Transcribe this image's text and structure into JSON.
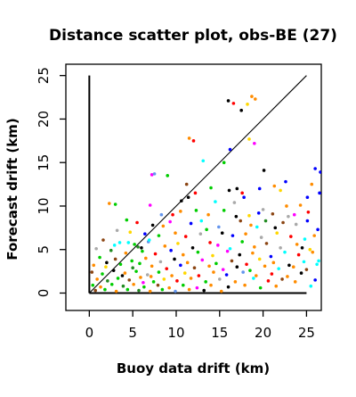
{
  "chart_data": {
    "type": "scatter",
    "title": "Distance scatter plot, obs-BE (27)",
    "xlabel": "Buoy data drift (km)",
    "ylabel": "Forecast drift (km)",
    "xlim": [
      -2.7,
      26.7
    ],
    "ylim": [
      -2,
      26.3
    ],
    "xticks": [
      0,
      5,
      10,
      15,
      20,
      25
    ],
    "yticks": [
      0,
      5,
      10,
      15,
      20,
      25
    ],
    "grid": false,
    "reference_lines": [
      {
        "kind": "identity",
        "from": [
          0,
          0
        ],
        "to": [
          25,
          25
        ]
      },
      {
        "kind": "x-axis",
        "from": [
          0,
          0
        ],
        "to": [
          25,
          0
        ]
      },
      {
        "kind": "y-axis",
        "from": [
          0,
          0
        ],
        "to": [
          0,
          25
        ]
      }
    ],
    "colors": [
      "#000000",
      "#ff0000",
      "#00cd00",
      "#0000ff",
      "#00ffff",
      "#ff00ff",
      "#ffd700",
      "#a9a9a9",
      "#ff8c00",
      "#8b4513",
      "#6495ed",
      "#228b22"
    ],
    "points": [
      [
        16.0,
        22.1,
        0
      ],
      [
        16.6,
        21.8,
        1
      ],
      [
        17.5,
        21.0,
        0
      ],
      [
        18.7,
        22.6,
        8
      ],
      [
        19.1,
        22.3,
        8
      ],
      [
        18.2,
        21.7,
        6
      ],
      [
        11.5,
        17.8,
        8
      ],
      [
        12.0,
        17.5,
        1
      ],
      [
        16.2,
        16.5,
        3
      ],
      [
        18.4,
        17.7,
        6
      ],
      [
        19.0,
        17.2,
        5
      ],
      [
        13.1,
        15.2,
        4
      ],
      [
        15.5,
        15.0,
        2
      ],
      [
        20.1,
        14.1,
        0
      ],
      [
        26.0,
        14.3,
        3
      ],
      [
        26.6,
        13.9,
        3
      ],
      [
        7.2,
        13.6,
        5
      ],
      [
        7.5,
        13.7,
        10
      ],
      [
        9.0,
        13.5,
        2
      ],
      [
        11.2,
        12.5,
        9
      ],
      [
        14.0,
        12.1,
        2
      ],
      [
        16.1,
        11.8,
        0
      ],
      [
        17.0,
        12.0,
        0
      ],
      [
        17.6,
        11.5,
        1
      ],
      [
        19.6,
        12.0,
        3
      ],
      [
        21.3,
        12.3,
        8
      ],
      [
        22.0,
        11.8,
        6
      ],
      [
        22.6,
        12.8,
        3
      ],
      [
        25.6,
        12.5,
        8
      ],
      [
        26.5,
        11.5,
        3
      ],
      [
        25.1,
        11.0,
        3
      ],
      [
        2.3,
        10.3,
        8
      ],
      [
        3.0,
        10.2,
        2
      ],
      [
        7.0,
        10.1,
        5
      ],
      [
        10.6,
        10.6,
        0
      ],
      [
        11.4,
        11.0,
        0
      ],
      [
        12.2,
        11.5,
        1
      ],
      [
        14.5,
        10.5,
        4
      ],
      [
        16.7,
        10.4,
        7
      ],
      [
        17.8,
        11.0,
        3
      ],
      [
        20.0,
        9.6,
        7
      ],
      [
        22.7,
        10.0,
        8
      ],
      [
        24.3,
        10.1,
        8
      ],
      [
        9.6,
        9.0,
        1
      ],
      [
        10.5,
        9.4,
        8
      ],
      [
        12.3,
        9.5,
        2
      ],
      [
        13.7,
        9.0,
        8
      ],
      [
        15.5,
        9.5,
        2
      ],
      [
        16.9,
        8.8,
        0
      ],
      [
        18.4,
        8.9,
        6
      ],
      [
        19.5,
        9.2,
        3
      ],
      [
        21.1,
        9.1,
        9
      ],
      [
        22.9,
        8.8,
        7
      ],
      [
        23.6,
        9.0,
        5
      ],
      [
        25.2,
        9.3,
        1
      ],
      [
        4.3,
        8.4,
        2
      ],
      [
        5.5,
        8.1,
        1
      ],
      [
        7.3,
        7.8,
        0
      ],
      [
        8.5,
        7.7,
        8
      ],
      [
        9.3,
        8.2,
        5
      ],
      [
        11.7,
        8.0,
        3
      ],
      [
        12.9,
        8.3,
        4
      ],
      [
        14.9,
        7.6,
        10
      ],
      [
        17.4,
        8.3,
        9
      ],
      [
        18.6,
        7.8,
        8
      ],
      [
        19.3,
        7.6,
        4
      ],
      [
        20.3,
        8.3,
        11
      ],
      [
        21.4,
        7.5,
        0
      ],
      [
        22.3,
        8.1,
        9
      ],
      [
        23.8,
        7.9,
        7
      ],
      [
        25.1,
        8.3,
        3
      ],
      [
        26.3,
        7.3,
        3
      ],
      [
        3.2,
        7.2,
        7
      ],
      [
        4.7,
        7.0,
        6
      ],
      [
        6.4,
        6.8,
        3
      ],
      [
        8.0,
        6.6,
        2
      ],
      [
        9.9,
        6.9,
        8
      ],
      [
        11.1,
        6.5,
        1
      ],
      [
        12.8,
        6.8,
        7
      ],
      [
        13.5,
        7.3,
        2
      ],
      [
        15.3,
        6.9,
        0
      ],
      [
        16.5,
        6.6,
        3
      ],
      [
        18.0,
        6.8,
        8
      ],
      [
        19.8,
        6.4,
        7
      ],
      [
        21.6,
        6.9,
        6
      ],
      [
        23.2,
        6.5,
        1
      ],
      [
        24.8,
        6.2,
        4
      ],
      [
        25.9,
        6.6,
        8
      ],
      [
        1.6,
        6.1,
        9
      ],
      [
        3.5,
        5.8,
        4
      ],
      [
        5.2,
        5.6,
        2
      ],
      [
        6.8,
        5.9,
        10
      ],
      [
        8.7,
        5.4,
        8
      ],
      [
        10.2,
        5.7,
        6
      ],
      [
        11.9,
        5.2,
        0
      ],
      [
        13.9,
        5.8,
        1
      ],
      [
        14.8,
        5.5,
        5
      ],
      [
        16.2,
        5.1,
        4
      ],
      [
        17.6,
        5.9,
        2
      ],
      [
        19.0,
        5.3,
        8
      ],
      [
        20.4,
        5.7,
        9
      ],
      [
        22.0,
        5.2,
        7
      ],
      [
        23.9,
        5.6,
        8
      ],
      [
        25.4,
        5.0,
        6
      ],
      [
        0.8,
        5.1,
        7
      ],
      [
        2.5,
        4.9,
        11
      ],
      [
        4.2,
        4.6,
        8
      ],
      [
        6.1,
        4.8,
        2
      ],
      [
        7.6,
        4.5,
        1
      ],
      [
        9.4,
        4.9,
        3
      ],
      [
        10.8,
        4.4,
        8
      ],
      [
        12.5,
        4.7,
        2
      ],
      [
        14.2,
        4.3,
        6
      ],
      [
        15.9,
        4.8,
        5
      ],
      [
        17.3,
        4.4,
        0
      ],
      [
        18.8,
        4.6,
        8
      ],
      [
        20.9,
        4.2,
        3
      ],
      [
        22.5,
        4.7,
        4
      ],
      [
        24.1,
        4.4,
        1
      ],
      [
        25.7,
        4.7,
        8
      ],
      [
        1.2,
        4.1,
        2
      ],
      [
        3.0,
        3.9,
        9
      ],
      [
        4.9,
        3.7,
        2
      ],
      [
        6.5,
        4.0,
        8
      ],
      [
        8.2,
        3.6,
        7
      ],
      [
        9.8,
        3.9,
        0
      ],
      [
        11.3,
        3.5,
        8
      ],
      [
        13.0,
        3.8,
        5
      ],
      [
        14.6,
        3.4,
        2
      ],
      [
        16.4,
        3.7,
        9
      ],
      [
        18.1,
        3.3,
        1
      ],
      [
        19.6,
        3.9,
        6
      ],
      [
        21.2,
        3.5,
        8
      ],
      [
        23.0,
        3.2,
        0
      ],
      [
        24.7,
        3.6,
        4
      ],
      [
        26.2,
        3.3,
        4
      ],
      [
        0.5,
        3.2,
        8
      ],
      [
        1.9,
        3.0,
        6
      ],
      [
        3.6,
        3.3,
        2
      ],
      [
        5.0,
        2.9,
        11
      ],
      [
        5.8,
        3.4,
        2
      ],
      [
        7.2,
        3.1,
        8
      ],
      [
        8.9,
        2.8,
        1
      ],
      [
        10.5,
        3.2,
        3
      ],
      [
        12.1,
        2.9,
        9
      ],
      [
        13.8,
        3.1,
        8
      ],
      [
        15.4,
        2.7,
        5
      ],
      [
        17.0,
        3.0,
        0
      ],
      [
        18.5,
        2.6,
        2
      ],
      [
        20.2,
        3.1,
        8
      ],
      [
        21.8,
        2.8,
        4
      ],
      [
        23.5,
        3.0,
        8
      ],
      [
        25.0,
        2.7,
        9
      ],
      [
        0.3,
        2.4,
        9
      ],
      [
        1.5,
        2.2,
        2
      ],
      [
        2.8,
        2.6,
        0
      ],
      [
        4.1,
        2.3,
        8
      ],
      [
        5.4,
        2.5,
        2
      ],
      [
        6.7,
        2.1,
        7
      ],
      [
        8.0,
        2.4,
        2
      ],
      [
        9.5,
        2.0,
        8
      ],
      [
        11.0,
        2.3,
        6
      ],
      [
        12.6,
        2.0,
        1
      ],
      [
        14.3,
        2.4,
        8
      ],
      [
        15.8,
        2.1,
        3
      ],
      [
        17.7,
        2.4,
        10
      ],
      [
        19.2,
        2.0,
        8
      ],
      [
        21.0,
        2.2,
        1
      ],
      [
        22.8,
        1.9,
        8
      ],
      [
        24.4,
        2.3,
        0
      ],
      [
        0.9,
        1.6,
        8
      ],
      [
        2.1,
        1.4,
        11
      ],
      [
        3.3,
        1.7,
        2
      ],
      [
        4.6,
        1.5,
        9
      ],
      [
        5.9,
        1.8,
        8
      ],
      [
        7.4,
        1.3,
        2
      ],
      [
        8.6,
        1.6,
        6
      ],
      [
        10.1,
        1.4,
        1
      ],
      [
        11.7,
        1.7,
        8
      ],
      [
        13.4,
        1.3,
        2
      ],
      [
        15.0,
        1.6,
        7
      ],
      [
        16.8,
        1.3,
        8
      ],
      [
        18.9,
        1.7,
        4
      ],
      [
        20.6,
        1.4,
        1
      ],
      [
        22.2,
        1.6,
        9
      ],
      [
        23.7,
        1.3,
        8
      ],
      [
        0.4,
        0.9,
        2
      ],
      [
        1.3,
        0.7,
        8
      ],
      [
        2.6,
        1.0,
        2
      ],
      [
        3.9,
        0.8,
        11
      ],
      [
        5.1,
        1.0,
        8
      ],
      [
        6.3,
        0.7,
        2
      ],
      [
        7.9,
        0.9,
        9
      ],
      [
        9.2,
        0.6,
        8
      ],
      [
        10.8,
        0.9,
        2
      ],
      [
        12.4,
        0.6,
        5
      ],
      [
        14.0,
        0.9,
        8
      ],
      [
        16.0,
        0.7,
        0
      ],
      [
        17.9,
        0.9,
        8
      ],
      [
        19.7,
        0.6,
        2
      ],
      [
        21.5,
        0.8,
        8
      ],
      [
        0.7,
        0.3,
        9
      ],
      [
        1.8,
        0.4,
        2
      ],
      [
        3.1,
        0.2,
        8
      ],
      [
        4.4,
        0.4,
        2
      ],
      [
        5.7,
        0.3,
        11
      ],
      [
        7.0,
        0.2,
        8
      ],
      [
        8.4,
        0.4,
        2
      ],
      [
        9.9,
        0.2,
        10
      ],
      [
        11.5,
        0.4,
        8
      ],
      [
        13.2,
        0.3,
        0
      ],
      [
        15.2,
        0.2,
        8
      ],
      [
        2.0,
        3.5,
        0
      ],
      [
        3.8,
        2.0,
        0
      ],
      [
        6.0,
        5.2,
        0
      ],
      [
        4.5,
        5.8,
        4
      ],
      [
        2.9,
        5.5,
        4
      ],
      [
        5.6,
        5.3,
        11
      ],
      [
        6.9,
        6.1,
        4
      ],
      [
        8.3,
        9.0,
        10
      ],
      [
        6.2,
        1.2,
        5
      ],
      [
        7.1,
        1.9,
        8
      ],
      [
        26.4,
        3.7,
        4
      ],
      [
        26.0,
        1.5,
        3
      ],
      [
        25.5,
        0.8,
        4
      ],
      [
        24.5,
        5.2,
        0
      ]
    ]
  }
}
